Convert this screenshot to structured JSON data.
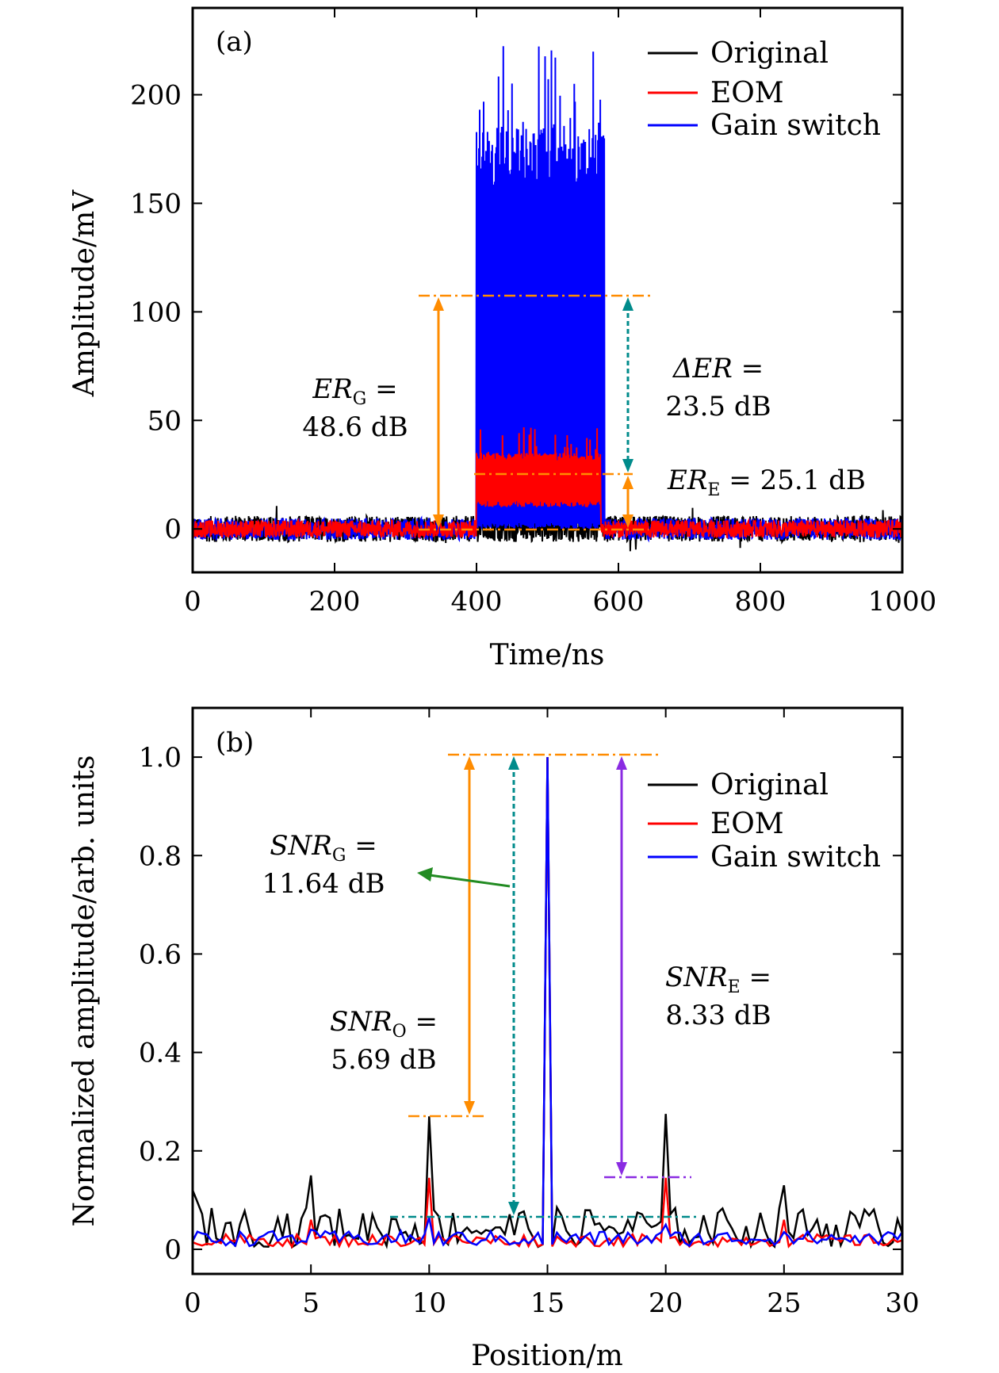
{
  "colors": {
    "original": "#000000",
    "eom": "#ff0000",
    "gain_switch": "#0000ff",
    "orange": "#ff8c00",
    "teal": "#008b8b",
    "purple": "#8a2be2",
    "green": "#228b22"
  },
  "chart_data": [
    {
      "type": "line",
      "panel_label": "(a)",
      "xlabel": "Time/ns",
      "ylabel": "Amplitude/mV",
      "xlim": [
        0,
        1000
      ],
      "ylim": [
        -20,
        240
      ],
      "xticks": [
        0,
        200,
        400,
        600,
        800,
        1000
      ],
      "yticks": [
        0,
        50,
        100,
        150,
        200
      ],
      "legend_position": "top-right",
      "series": [
        {
          "name": "Original",
          "color": "#000000",
          "noise_amplitude": 6,
          "pulse": null
        },
        {
          "name": "EOM",
          "color": "#ff0000",
          "noise_amplitude": 4,
          "pulse": {
            "start": 400,
            "end": 575,
            "low": 10,
            "high": 35,
            "peak_max": 47
          }
        },
        {
          "name": "Gain switch",
          "color": "#0000ff",
          "noise_amplitude": 5,
          "pulse": {
            "start": 400,
            "end": 580,
            "low": 0,
            "high": 185,
            "peak_max": 224
          }
        }
      ],
      "annotations": {
        "er_g": {
          "symbol": "ER",
          "sub": "G",
          "line1_suffix": " =",
          "line2": "48.6 dB"
        },
        "delta_er": {
          "symbol": "ΔER",
          "line1_suffix": " =",
          "line2": "23.5 dB"
        },
        "er_e": {
          "symbol": "ER",
          "sub": "E",
          "line1_suffix": " = 25.1 dB"
        }
      },
      "reference_levels": {
        "top": 107,
        "mid": 26,
        "base": 0
      }
    },
    {
      "type": "line",
      "panel_label": "(b)",
      "xlabel": "Position/m",
      "ylabel": "Normalized amplitude/arb. units",
      "xlim": [
        0,
        30
      ],
      "ylim": [
        -0.05,
        1.1
      ],
      "xticks": [
        0,
        5,
        10,
        15,
        20,
        25,
        30
      ],
      "yticks": [
        0,
        0.2,
        0.4,
        0.6,
        0.8,
        1.0
      ],
      "ytick_labels": [
        "0",
        "0.2",
        "0.4",
        "0.6",
        "0.8",
        "1.0"
      ],
      "legend_position": "top-right",
      "series": [
        {
          "name": "Original",
          "color": "#000000",
          "baseline": 0.045,
          "peaks": [
            {
              "x": 5,
              "y": 0.15
            },
            {
              "x": 10,
              "y": 0.27
            },
            {
              "x": 15,
              "y": 1.0
            },
            {
              "x": 20,
              "y": 0.275
            },
            {
              "x": 25,
              "y": 0.13
            }
          ]
        },
        {
          "name": "EOM",
          "color": "#ff0000",
          "baseline": 0.018,
          "peaks": [
            {
              "x": 5,
              "y": 0.06
            },
            {
              "x": 10,
              "y": 0.145
            },
            {
              "x": 15,
              "y": 1.0
            },
            {
              "x": 20,
              "y": 0.145
            },
            {
              "x": 25,
              "y": 0.06
            }
          ]
        },
        {
          "name": "Gain switch",
          "color": "#0000ff",
          "baseline": 0.022,
          "peaks": [
            {
              "x": 5,
              "y": 0.04
            },
            {
              "x": 10,
              "y": 0.065
            },
            {
              "x": 15,
              "y": 1.0
            },
            {
              "x": 20,
              "y": 0.05
            },
            {
              "x": 25,
              "y": 0.035
            }
          ]
        }
      ],
      "annotations": {
        "snr_g": {
          "symbol": "SNR",
          "sub": "G",
          "line1_suffix": " =",
          "line2": "11.64 dB"
        },
        "snr_o": {
          "symbol": "SNR",
          "sub": "O",
          "line1_suffix": " =",
          "line2": "5.69 dB"
        },
        "snr_e": {
          "symbol": "SNR",
          "sub": "E",
          "line1_suffix": " =",
          "line2": "8.33 dB"
        }
      },
      "reference_levels": {
        "top": 1.0,
        "original": 0.27,
        "eom": 0.145,
        "gain": 0.068
      }
    }
  ]
}
